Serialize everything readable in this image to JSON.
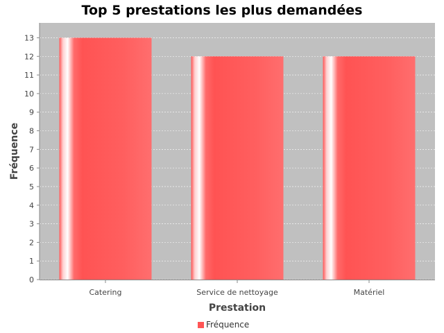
{
  "chart_data": {
    "type": "bar",
    "title": "Top 5 prestations les plus demandées",
    "xlabel": "Prestation",
    "ylabel": "Fréquence",
    "categories": [
      "Catering",
      "Service de nettoyage",
      "Matériel"
    ],
    "series": [
      {
        "name": "Fréquence",
        "values": [
          13,
          12,
          12
        ]
      }
    ],
    "ylim": [
      0,
      13.8
    ],
    "yticks": [
      "0",
      "1",
      "2",
      "3",
      "4",
      "5",
      "6",
      "7",
      "8",
      "9",
      "10",
      "11",
      "12",
      "13"
    ],
    "grid": true,
    "legend_position": "bottom",
    "colors": {
      "bar": "#ff5555",
      "bar_highlight": "#ffffff",
      "plot_background": "#c0c0c0",
      "gridline": "#ffffff"
    }
  }
}
